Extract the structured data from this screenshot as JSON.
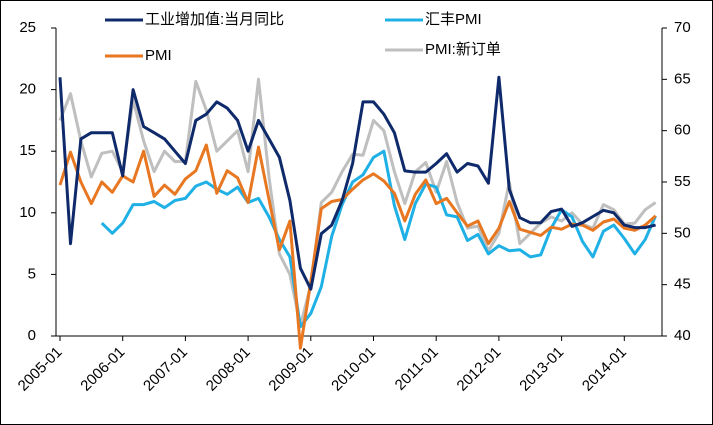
{
  "chart_data": {
    "type": "line",
    "categories": [
      "2005-01",
      null,
      null,
      null,
      null,
      null,
      "2006-01",
      null,
      null,
      null,
      null,
      null,
      "2007-01",
      null,
      null,
      null,
      null,
      null,
      "2008-01",
      null,
      null,
      null,
      null,
      null,
      "2009-01",
      null,
      null,
      null,
      null,
      null,
      "2010-01",
      null,
      null,
      null,
      null,
      null,
      "2011-01",
      null,
      null,
      null,
      null,
      null,
      "2012-01",
      null,
      null,
      null,
      null,
      null,
      "2013-01",
      null,
      null,
      null,
      null,
      null,
      "2014-01",
      null,
      null,
      null
    ],
    "series": [
      {
        "name": "工业增加值:当月同比",
        "color": "#0f2a6b",
        "axis": "y",
        "values": [
          21,
          7.5,
          16,
          16.5,
          16.5,
          16.5,
          13,
          20,
          17,
          16.5,
          16,
          15,
          14,
          17.5,
          18,
          19,
          18.5,
          17.5,
          15,
          17.5,
          16,
          14.5,
          11,
          5.5,
          3.8,
          8.3,
          9,
          11,
          14,
          19,
          19,
          18,
          16.5,
          13.4,
          13.3,
          13.3,
          14,
          14.8,
          13.3,
          14,
          13.8,
          12.4,
          21,
          11.9,
          9.6,
          9.2,
          9.2,
          10.1,
          10.3,
          8.9,
          9.2,
          9.7,
          10.2,
          10,
          9,
          8.8,
          8.8,
          9
        ]
      },
      {
        "name": "汇丰PMI",
        "color": "#1fb0e6",
        "axis": "y2",
        "values": [
          null,
          null,
          null,
          null,
          51,
          50,
          51,
          52.8,
          52.8,
          53.1,
          52.5,
          53.2,
          53.4,
          54.6,
          55,
          54.3,
          53.8,
          54.5,
          53,
          53.4,
          51.6,
          49.4,
          47.7,
          40.9,
          42.2,
          44.8,
          49.7,
          52.8,
          55,
          55.7,
          57.4,
          58,
          52.7,
          49.4,
          52.9,
          54.8,
          54.5,
          51.8,
          51.6,
          49.3,
          49.9,
          48,
          48.8,
          48.3,
          48.4,
          47.7,
          47.9,
          50.5,
          52.3,
          51.6,
          49.2,
          47.7,
          50.2,
          50.8,
          49.5,
          48,
          49.4,
          51.7
        ]
      },
      {
        "name": "PMI",
        "color": "#e87722",
        "axis": "y2",
        "values": [
          54.7,
          57.9,
          55,
          52.9,
          55,
          54,
          55.6,
          55,
          58,
          53.6,
          54.7,
          53.8,
          55.3,
          56.1,
          58.6,
          53.9,
          56.1,
          55.4,
          53,
          58.4,
          53.3,
          48.4,
          51.2,
          38.8,
          45.3,
          52.4,
          53.1,
          53.3,
          54.3,
          55.2,
          55.8,
          55.1,
          53.9,
          51.2,
          53.8,
          55.2,
          52.9,
          53.4,
          52,
          50.7,
          51.2,
          49,
          50.5,
          53.1,
          50.4,
          50.1,
          49.8,
          50.6,
          50.4,
          50.9,
          50.8,
          50.3,
          51.1,
          51.4,
          50.5,
          50.3,
          50.8,
          51.7
        ]
      },
      {
        "name": "PMI:新订单",
        "color": "#bfbfbf",
        "axis": "y2",
        "values": [
          61,
          63.6,
          59,
          55.5,
          57.8,
          58,
          56,
          63,
          59,
          56,
          58,
          57,
          57,
          64.8,
          62,
          58,
          59,
          60,
          56,
          65,
          55.5,
          48,
          46,
          41,
          45,
          53,
          54,
          56,
          57.7,
          57.6,
          61,
          60,
          56,
          52.9,
          56,
          56.9,
          54,
          57,
          53,
          50.5,
          50.7,
          48.3,
          50,
          55,
          49,
          50,
          51,
          51.6,
          51.2,
          52,
          50.9,
          50.5,
          52.8,
          52.3,
          50.9,
          51,
          52.3,
          53
        ]
      }
    ],
    "ylim": [
      0,
      25
    ],
    "yticks": [
      0,
      5,
      10,
      15,
      20,
      25
    ],
    "y2lim": [
      40,
      70
    ],
    "y2ticks": [
      40,
      45,
      50,
      55,
      60,
      65,
      70
    ],
    "grid": false
  }
}
